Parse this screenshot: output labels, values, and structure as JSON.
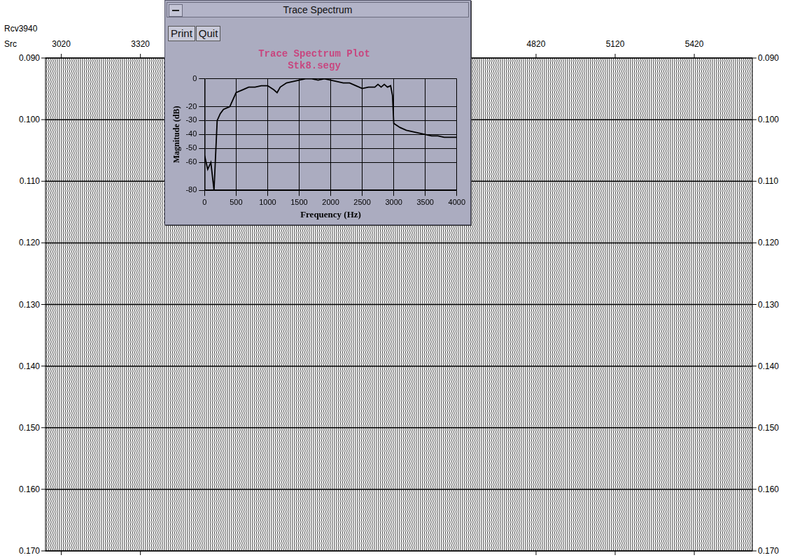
{
  "section": {
    "rcv_label": "Rcv",
    "rcv": 3940,
    "src_label": "Src",
    "xlim": [
      2960,
      5640
    ],
    "xticks": [
      3020,
      3320,
      4820,
      5120,
      5420
    ],
    "ylim": [
      0.09,
      0.17
    ],
    "yticks": [
      {
        "value": 0.09,
        "label": "0.090"
      },
      {
        "value": 0.1,
        "label": "0.100"
      },
      {
        "value": 0.11,
        "label": "0.110"
      },
      {
        "value": 0.12,
        "label": "0.120"
      },
      {
        "value": 0.13,
        "label": "0.130"
      },
      {
        "value": 0.14,
        "label": "0.140"
      },
      {
        "value": 0.15,
        "label": "0.150"
      },
      {
        "value": 0.16,
        "label": "0.160"
      },
      {
        "value": 0.17,
        "label": "0.170"
      }
    ],
    "grid": true
  },
  "window": {
    "title": "Trace Spectrum",
    "buttons": [
      "Print",
      "Quit"
    ]
  },
  "chart_data": {
    "type": "line",
    "title": "Trace Spectrum Plot",
    "subtitle": "Stk8.segy",
    "x_label": "Frequency (Hz)",
    "y_label": "Magnitude (dB)",
    "x": [
      0,
      50,
      100,
      150,
      200,
      250,
      300,
      400,
      500,
      600,
      700,
      800,
      900,
      1000,
      1100,
      1150,
      1200,
      1300,
      1400,
      1500,
      1600,
      1700,
      1800,
      1900,
      2000,
      2100,
      2200,
      2300,
      2400,
      2500,
      2600,
      2700,
      2750,
      2800,
      2850,
      2900,
      2950,
      2980,
      3000,
      3100,
      3200,
      3300,
      3400,
      3500,
      3600,
      3700,
      3800,
      3900,
      4000
    ],
    "values": [
      -55,
      -65,
      -60,
      -80,
      -30,
      -25,
      -22,
      -20,
      -10,
      -8,
      -6,
      -6,
      -5,
      -5,
      -8,
      -10,
      -6,
      -3,
      -2,
      -1,
      0,
      0,
      -1,
      0,
      -1,
      -2,
      -3,
      -3,
      -5,
      -7,
      -6,
      -6,
      -4,
      -6,
      -4,
      -6,
      -5,
      -12,
      -32,
      -35,
      -37,
      -38,
      -39,
      -40,
      -41,
      -41,
      -42,
      -42,
      -42
    ],
    "color": "#000000",
    "xlim": [
      0,
      4000
    ],
    "xticks": [
      0,
      500,
      1000,
      1500,
      2000,
      2500,
      3000,
      3500,
      4000
    ],
    "ylim": [
      -80,
      0
    ],
    "yticks": [
      0,
      -20,
      -30,
      -40,
      -50,
      -60,
      -80
    ],
    "grid": true
  }
}
